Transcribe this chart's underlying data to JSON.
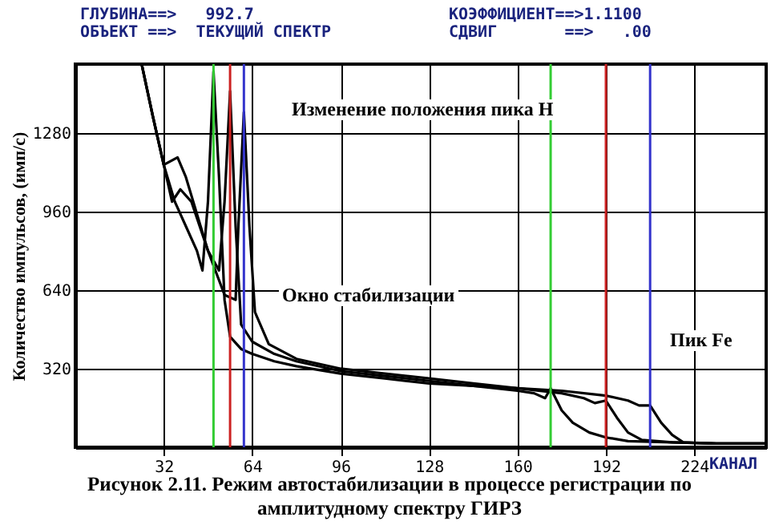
{
  "chart_data": {
    "type": "line",
    "title": "Рисунок 2.11. Режим автостабилизации в процессе регистрации по амплитудному спектру ГИРЗ",
    "xlabel": "КАНАЛ",
    "ylabel": "Количество импульсов, (имп/с)",
    "xlim": [
      0,
      250
    ],
    "ylim": [
      0,
      1560
    ],
    "xticks": [
      32,
      64,
      96,
      128,
      160,
      192,
      224
    ],
    "yticks": [
      320,
      640,
      960,
      1280
    ],
    "grid": true,
    "series": [
      {
        "color": "#000000",
        "x": [
          24,
          28,
          32,
          36,
          40,
          44,
          46,
          48,
          50,
          52,
          54,
          56,
          60,
          64,
          72,
          80,
          96,
          112,
          128,
          144,
          160,
          166,
          170,
          172,
          176,
          180,
          186,
          192,
          200,
          216,
          232,
          250
        ],
        "values": [
          1560,
          1350,
          1150,
          1000,
          900,
          800,
          720,
          1000,
          1530,
          1100,
          600,
          450,
          400,
          380,
          350,
          330,
          300,
          280,
          260,
          250,
          230,
          220,
          200,
          240,
          150,
          100,
          60,
          40,
          25,
          20,
          15,
          15
        ]
      },
      {
        "color": "#000000",
        "x": [
          24,
          28,
          32,
          37,
          40,
          44,
          48,
          52,
          54,
          56,
          58,
          60,
          64,
          72,
          80,
          96,
          112,
          128,
          144,
          160,
          176,
          184,
          188,
          192,
          196,
          200,
          205,
          216,
          232,
          250
        ],
        "values": [
          1560,
          1350,
          1150,
          1180,
          1100,
          950,
          800,
          720,
          1000,
          1450,
          900,
          500,
          430,
          380,
          350,
          310,
          290,
          270,
          250,
          240,
          220,
          200,
          180,
          190,
          120,
          60,
          30,
          20,
          15,
          15
        ]
      },
      {
        "color": "#000000",
        "x": [
          24,
          28,
          32,
          35,
          38,
          42,
          48,
          54,
          58,
          59,
          61,
          63,
          65,
          70,
          80,
          96,
          112,
          128,
          144,
          160,
          176,
          192,
          200,
          204,
          208,
          212,
          216,
          220,
          232,
          250
        ],
        "values": [
          1560,
          1350,
          1150,
          1000,
          1050,
          1000,
          800,
          620,
          600,
          900,
          1365,
          900,
          550,
          420,
          360,
          320,
          300,
          280,
          260,
          240,
          230,
          210,
          190,
          170,
          170,
          100,
          50,
          20,
          15,
          15
        ]
      }
    ],
    "ref_lines": [
      {
        "axis": "x",
        "value": 50,
        "color": "#33cc33"
      },
      {
        "axis": "x",
        "value": 56,
        "color": "#cc2222"
      },
      {
        "axis": "x",
        "value": 61,
        "color": "#3333cc"
      },
      {
        "axis": "x",
        "value": 172,
        "color": "#33cc33"
      },
      {
        "axis": "x",
        "value": 192,
        "color": "#cc2222"
      },
      {
        "axis": "x",
        "value": 208,
        "color": "#3333cc"
      }
    ],
    "annotations": [
      "ГЛУБИНА==>   992.7",
      "КОЭФФИЦИЕНТ==>1.1100",
      "ОБЪЕКТ ==>  ТЕКУЩИЙ СПЕКТР",
      "СДВИГ       ==>   .00",
      "Изменение положения пика H",
      "Окно стабилизации",
      "Пик Fe"
    ]
  }
}
